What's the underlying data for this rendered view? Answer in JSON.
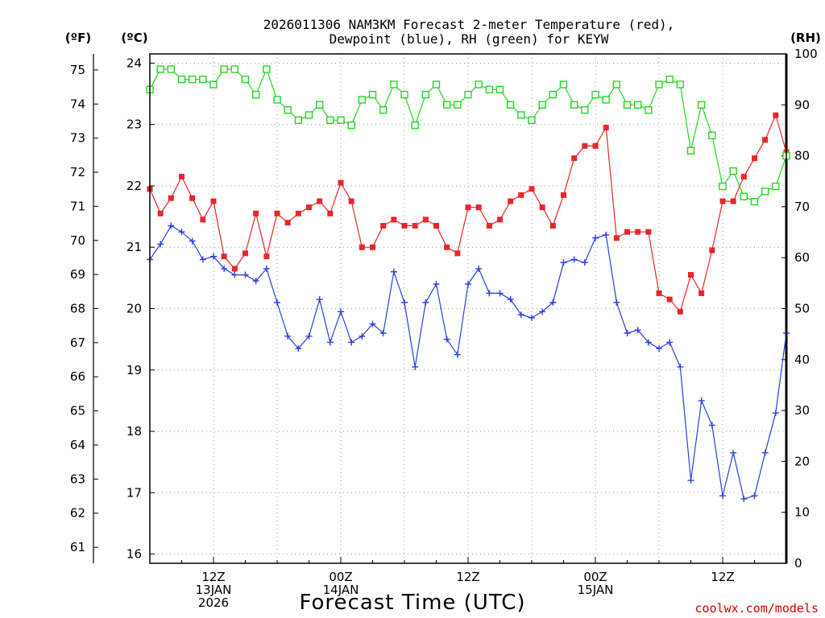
{
  "title_line1": "2026011306 NAM3KM Forecast 2-meter Temperature (red),",
  "title_line2": "Dewpoint (blue), RH (green) for KEYW",
  "left_unit_f": "(ºF)",
  "left_unit_c": "(ºC)",
  "right_unit": "(RH)",
  "credit": "coolwx.com/models",
  "chart_data": {
    "type": "line",
    "title": "2026011306 NAM3KM Forecast 2-meter Temperature (red), Dewpoint (blue), RH (green) for KEYW",
    "xlabel": "Forecast Time (UTC)",
    "x_unit": "forecast hour from 2026-01-13 06Z",
    "x_range": [
      0,
      60
    ],
    "x_ticks": [
      {
        "hour": 6,
        "lines": [
          "12Z",
          "13JAN",
          "2026"
        ]
      },
      {
        "hour": 18,
        "lines": [
          "00Z",
          "14JAN"
        ]
      },
      {
        "hour": 30,
        "lines": [
          "12Z"
        ]
      },
      {
        "hour": 42,
        "lines": [
          "00Z",
          "15JAN"
        ]
      },
      {
        "hour": 54,
        "lines": [
          "12Z"
        ]
      }
    ],
    "celsius_axis": {
      "label": "(ºC)",
      "range": [
        15.85,
        24.15
      ],
      "ticks": [
        16,
        17,
        18,
        19,
        20,
        21,
        22,
        23,
        24
      ]
    },
    "fahrenheit_axis": {
      "label": "(ºF)",
      "ticks": [
        61,
        62,
        63,
        64,
        65,
        66,
        67,
        68,
        69,
        70,
        71,
        72,
        73,
        74,
        75
      ]
    },
    "rh_axis": {
      "label": "(RH)",
      "range": [
        0,
        100
      ],
      "ticks": [
        0,
        10,
        20,
        30,
        40,
        50,
        60,
        70,
        80,
        90,
        100
      ]
    },
    "grid": true,
    "series": [
      {
        "axis": "celsius",
        "color": "#e8262a",
        "marker": "filled-square",
        "values": [
          21.95,
          21.55,
          21.8,
          22.15,
          21.8,
          21.45,
          21.75,
          20.85,
          20.65,
          20.9,
          21.55,
          20.85,
          21.55,
          21.4,
          21.55,
          21.65,
          21.75,
          21.55,
          22.05,
          21.75,
          21.0,
          21.0,
          21.35,
          21.45,
          21.35,
          21.35,
          21.45,
          21.35,
          21.0,
          20.9,
          21.65,
          21.65,
          21.35,
          21.45,
          21.75,
          21.85,
          21.95,
          21.65,
          21.35,
          21.85,
          22.45,
          22.65,
          22.65,
          22.95,
          21.15,
          21.25,
          21.25,
          21.25,
          20.25,
          20.15,
          19.95,
          20.55,
          20.25,
          20.95,
          21.75,
          21.75,
          22.15,
          22.45,
          22.75,
          23.15,
          22.55
        ]
      },
      {
        "axis": "celsius",
        "color": "#2b3fe0",
        "marker": "plus",
        "values": [
          20.8,
          21.05,
          21.35,
          21.25,
          21.1,
          20.8,
          20.85,
          20.65,
          20.55,
          20.55,
          20.45,
          20.65,
          20.1,
          19.55,
          19.35,
          19.55,
          20.15,
          19.45,
          19.95,
          19.45,
          19.55,
          19.75,
          19.6,
          20.6,
          20.1,
          19.05,
          20.1,
          20.4,
          19.5,
          19.25,
          20.4,
          20.65,
          20.25,
          20.25,
          20.15,
          19.9,
          19.85,
          19.95,
          20.1,
          20.75,
          20.8,
          20.75,
          21.15,
          21.2,
          20.1,
          19.6,
          19.65,
          19.45,
          19.35,
          19.45,
          19.05,
          17.2,
          18.5,
          18.1,
          16.95,
          17.65,
          16.9,
          16.95,
          17.65,
          18.3,
          19.6
        ]
      },
      {
        "axis": "rh",
        "color": "#22d822",
        "marker": "open-square",
        "values": [
          93,
          97,
          97,
          95,
          95,
          95,
          94,
          97,
          97,
          95,
          92,
          97,
          91,
          89,
          87,
          88,
          90,
          87,
          87,
          86,
          91,
          92,
          89,
          94,
          92,
          86,
          92,
          94,
          90,
          90,
          92,
          94,
          93,
          93,
          90,
          88,
          87,
          90,
          92,
          94,
          90,
          89,
          92,
          91,
          94,
          90,
          90,
          89,
          94,
          95,
          94,
          81,
          90,
          84,
          74,
          77,
          72,
          71,
          73,
          74,
          80
        ]
      }
    ]
  }
}
